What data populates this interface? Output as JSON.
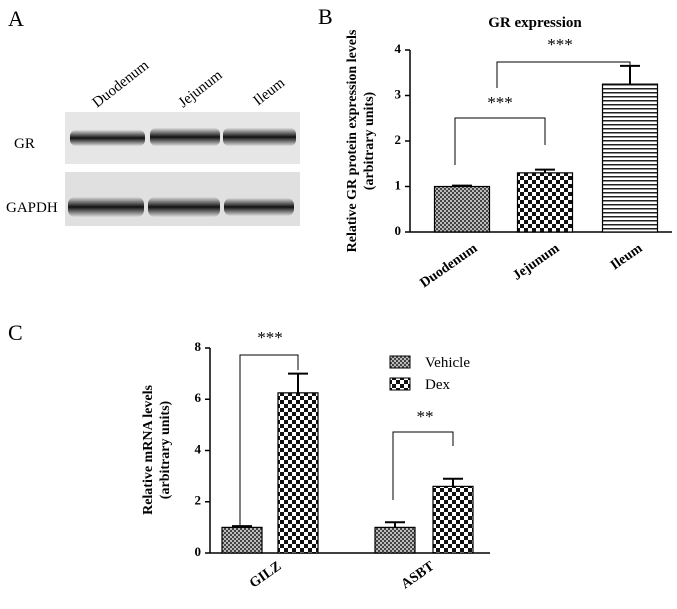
{
  "panel_labels": [
    "A",
    "B",
    "C"
  ],
  "blot": {
    "lanes": [
      "Duodenum",
      "Jejunum",
      "Ileum"
    ],
    "rows": [
      "GR",
      "GAPDH"
    ]
  },
  "chart_data": [
    {
      "type": "bar",
      "title": "GR expression",
      "ylabel": [
        "Relative GR protein expression levels",
        "(arbitrary units)"
      ],
      "categories": [
        "Duodenum",
        "Jejunum",
        "Ileum"
      ],
      "values": [
        1.0,
        1.3,
        3.25
      ],
      "errors": [
        0.02,
        0.07,
        0.4
      ],
      "patterns": [
        "fine-check",
        "check",
        "hlines"
      ],
      "ylim": [
        0,
        4
      ],
      "yticks": [
        0,
        1,
        2,
        3,
        4
      ],
      "annotations": [
        "***",
        "***"
      ]
    },
    {
      "type": "grouped-bar",
      "ylabel": [
        "Relative mRNA levels",
        "(arbitrary units)"
      ],
      "categories": [
        "GILZ",
        "ASBT"
      ],
      "series": [
        {
          "name": "Vehicle",
          "pattern": "fine-check",
          "values": [
            1.0,
            1.0
          ],
          "errors": [
            0.05,
            0.2
          ]
        },
        {
          "name": "Dex",
          "pattern": "check",
          "values": [
            6.25,
            2.6
          ],
          "errors": [
            0.75,
            0.3
          ]
        }
      ],
      "ylim": [
        0,
        8
      ],
      "yticks": [
        0,
        2,
        4,
        6,
        8
      ],
      "annotations": [
        "***",
        "**"
      ],
      "legend": "top-right"
    }
  ]
}
